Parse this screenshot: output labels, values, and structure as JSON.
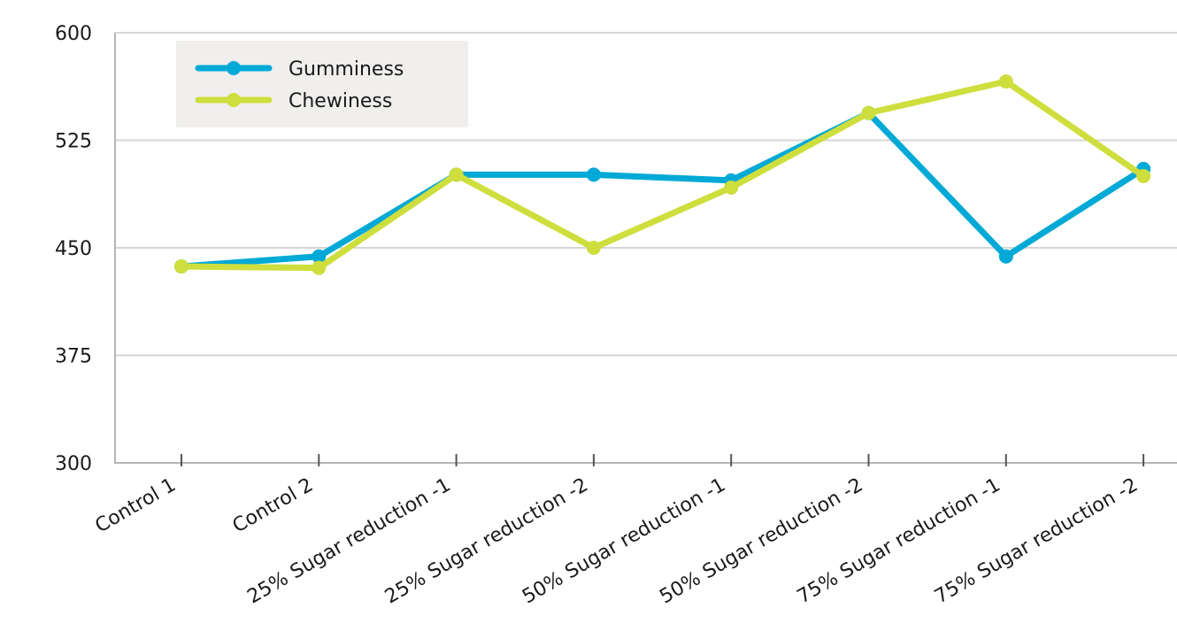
{
  "chart_data": {
    "type": "line",
    "title": "",
    "xlabel": "",
    "ylabel": "",
    "categories": [
      "Control 1",
      "Control 2",
      "25% Sugar reduction -1",
      "25% Sugar reduction -2",
      "50% Sugar reduction -1",
      "50% Sugar reduction -2",
      "75% Sugar reduction -1",
      "75% Sugar reduction -2"
    ],
    "ylim": [
      300,
      600
    ],
    "yticks": [
      "300",
      "375",
      "450",
      "525",
      "600"
    ],
    "grid": true,
    "legend_position": "top-left",
    "series": [
      {
        "name": "Gumminess",
        "color": "#00a9d6",
        "values": [
          437,
          444,
          501,
          501,
          497,
          544,
          444,
          505
        ]
      },
      {
        "name": "Chewiness",
        "color": "#cede3d",
        "values": [
          437,
          436,
          501,
          450,
          492,
          544,
          566,
          500
        ]
      }
    ]
  }
}
